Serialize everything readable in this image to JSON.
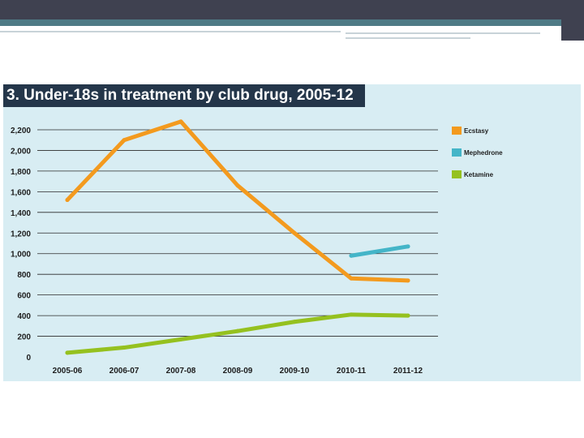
{
  "chart_data": {
    "type": "line",
    "title": "3. Under-18s in treatment by club drug, 2005-12",
    "categories": [
      "2005-06",
      "2006-07",
      "2007-08",
      "2008-09",
      "2009-10",
      "2010-11",
      "2011-12"
    ],
    "series": [
      {
        "name": "Ecstasy",
        "color": "#f39a1e",
        "values": [
          1520,
          2100,
          2280,
          1660,
          1200,
          760,
          740
        ]
      },
      {
        "name": "Mephedrone",
        "color": "#44b5c8",
        "values": [
          null,
          null,
          null,
          null,
          null,
          980,
          1070
        ]
      },
      {
        "name": "Ketamine",
        "color": "#95c11f",
        "values": [
          40,
          90,
          170,
          250,
          340,
          410,
          400
        ]
      }
    ],
    "yticks": [
      "0",
      "200",
      "400",
      "600",
      "800",
      "1,000",
      "1,200",
      "1,400",
      "1,600",
      "1,800",
      "2,000",
      "2,200"
    ],
    "ylim": [
      0,
      2200
    ],
    "grid": true,
    "legend": "top-right"
  }
}
